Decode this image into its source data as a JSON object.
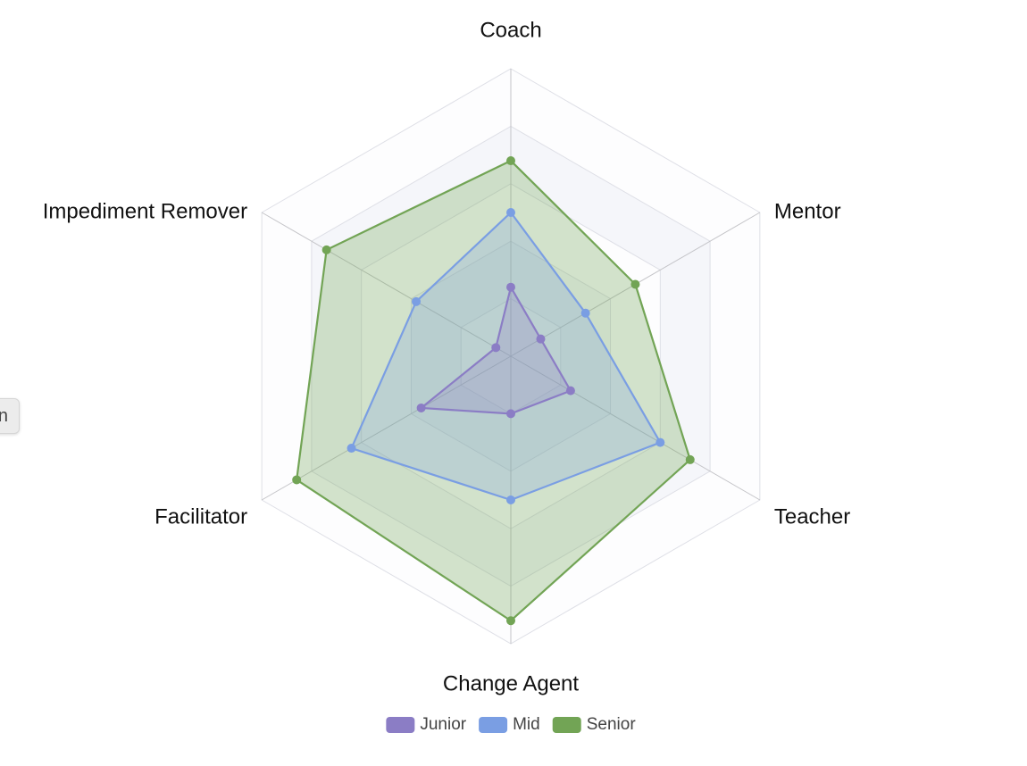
{
  "side_tab": {
    "text": "n"
  },
  "chart_data": {
    "type": "radar",
    "axes": [
      "Coach",
      "Mentor",
      "Teacher",
      "Change Agent",
      "Facilitator",
      "Impediment Remover"
    ],
    "rmax": 5,
    "ring_count": 5,
    "series": [
      {
        "name": "Junior",
        "values": [
          1.2,
          0.6,
          1.2,
          1.0,
          1.8,
          0.3
        ],
        "color": "#8b7dc5",
        "fill": "rgba(139,125,197,0.25)"
      },
      {
        "name": "Mid",
        "values": [
          2.5,
          1.5,
          3.0,
          2.5,
          3.2,
          1.9
        ],
        "color": "#7a9ee3",
        "fill": "rgba(122,158,227,0.25)"
      },
      {
        "name": "Senior",
        "values": [
          3.4,
          2.5,
          3.6,
          4.6,
          4.3,
          3.7
        ],
        "color": "#72a455",
        "fill": "rgba(114,164,85,0.30)"
      }
    ],
    "legend": {
      "position": "bottom"
    }
  }
}
